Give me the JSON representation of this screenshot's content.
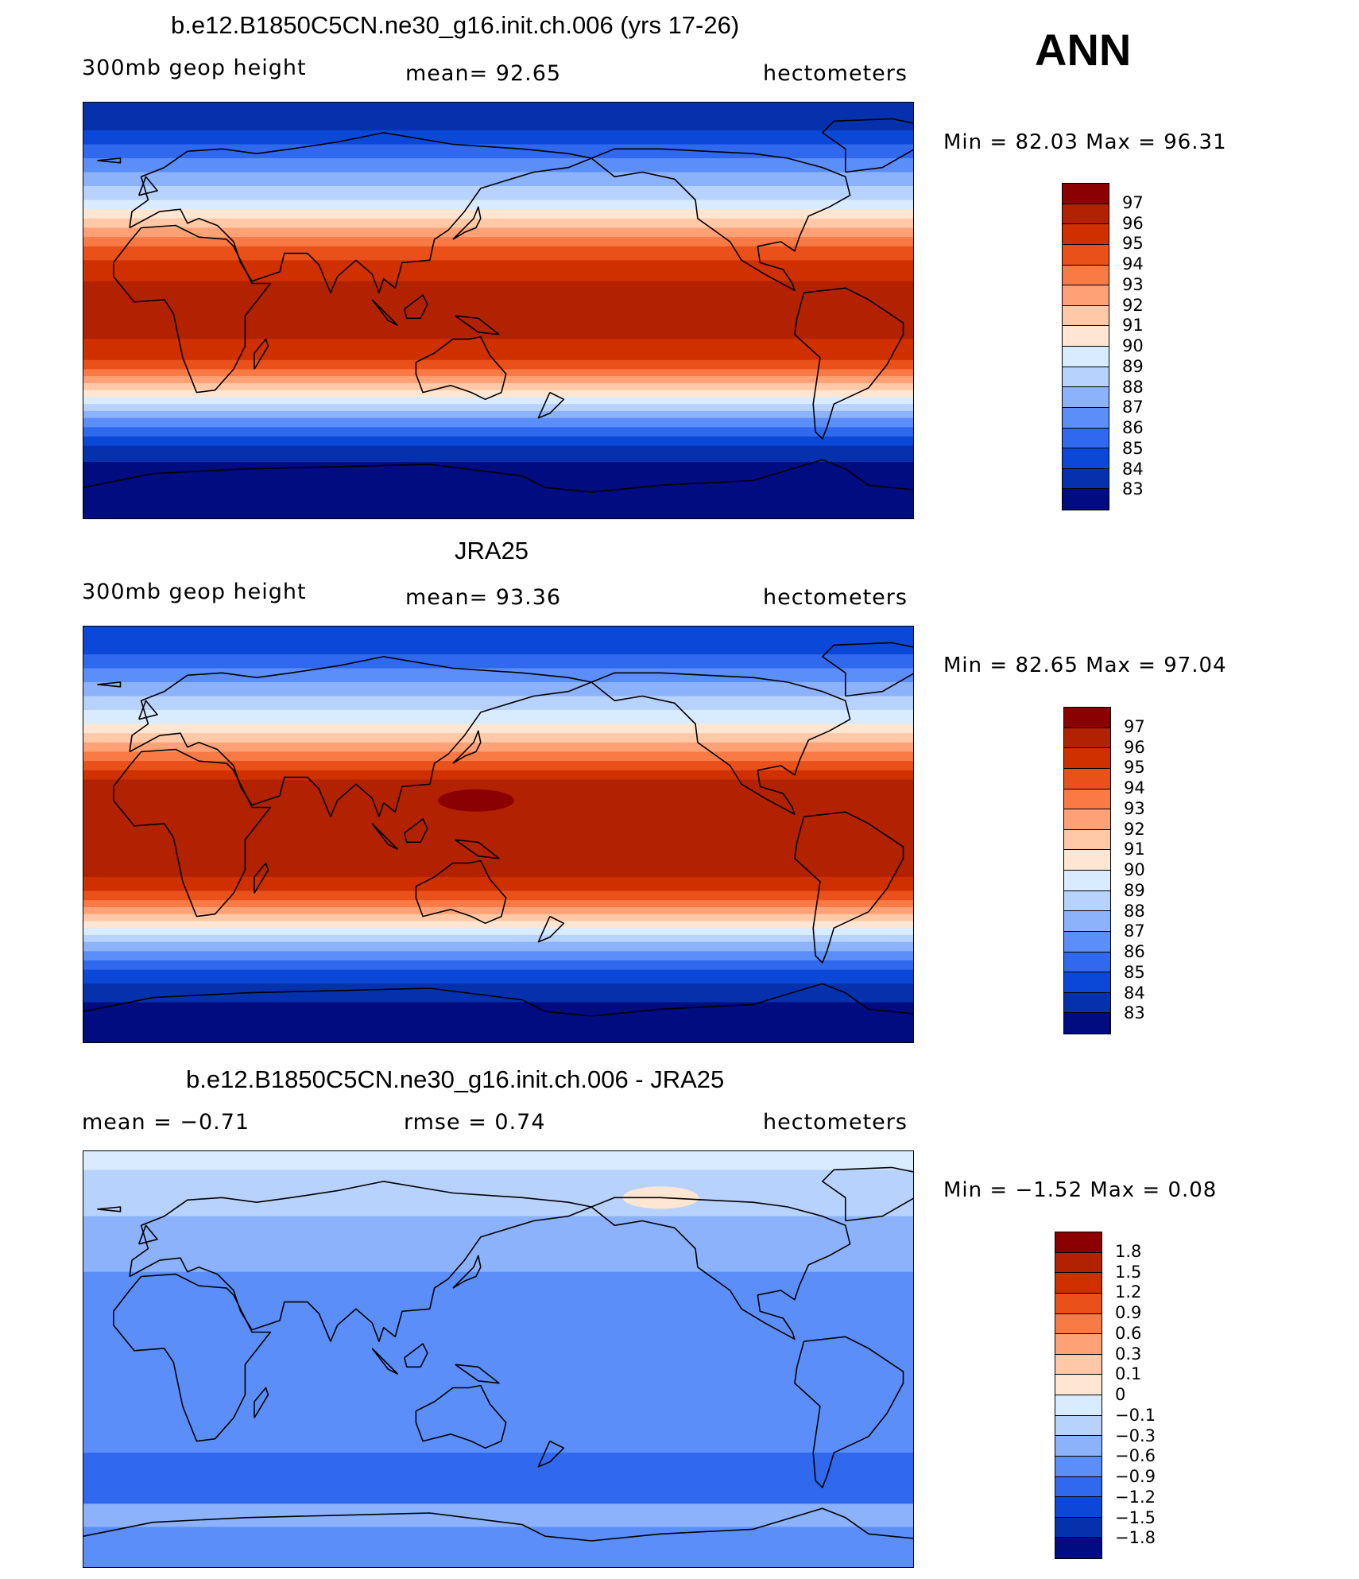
{
  "season": "ANN",
  "units": "hectometers",
  "palette_main": [
    "#8b0000",
    "#b22200",
    "#d03000",
    "#e9501a",
    "#f97a45",
    "#fea176",
    "#ffc8a6",
    "#ffe6d2",
    "#d9ecff",
    "#b7d2fd",
    "#8bb2fb",
    "#5b8ef8",
    "#3068ee",
    "#0c48d8",
    "#0532ac",
    "#000c80"
  ],
  "palette_diff": [
    "#8b0000",
    "#b22200",
    "#d03000",
    "#e9501a",
    "#f97a45",
    "#fea176",
    "#ffc8a6",
    "#ffe6d2",
    "#d9ecff",
    "#b7d2fd",
    "#8bb2fb",
    "#5b8ef8",
    "#3068ee",
    "#0c48d8",
    "#0532ac",
    "#000c80"
  ],
  "panels": [
    {
      "id": "model",
      "title": "b.e12.B1850C5CN.ne30_g16.init.ch.006 (yrs 17-26)",
      "left_label": "300mb geop height",
      "center_label": "mean=  92.65",
      "right_label": "hectometers",
      "minmax_label": "Min =   82.03 Max =   96.31",
      "levels": [
        "97",
        "96",
        "95",
        "94",
        "93",
        "92",
        "91",
        "90",
        "89",
        "88",
        "87",
        "86",
        "85",
        "84",
        "83"
      ],
      "bands": [
        {
          "lat": 90,
          "level": 14
        },
        {
          "lat": 78,
          "level": 13
        },
        {
          "lat": 72,
          "level": 12
        },
        {
          "lat": 66,
          "level": 11
        },
        {
          "lat": 60,
          "level": 10
        },
        {
          "lat": 54,
          "level": 9
        },
        {
          "lat": 48,
          "level": 8
        },
        {
          "lat": 44,
          "level": 7
        },
        {
          "lat": 40,
          "level": 6
        },
        {
          "lat": 36,
          "level": 5
        },
        {
          "lat": 32,
          "level": 4
        },
        {
          "lat": 28,
          "level": 3
        },
        {
          "lat": 22,
          "level": 2
        },
        {
          "lat": 13,
          "level": 1
        },
        {
          "lat": -12,
          "level": 2
        },
        {
          "lat": -21,
          "level": 3
        },
        {
          "lat": -25,
          "level": 4
        },
        {
          "lat": -28,
          "level": 5
        },
        {
          "lat": -31,
          "level": 6
        },
        {
          "lat": -34,
          "level": 7
        },
        {
          "lat": -37,
          "level": 8
        },
        {
          "lat": -40,
          "level": 9
        },
        {
          "lat": -43,
          "level": 10
        },
        {
          "lat": -46,
          "level": 11
        },
        {
          "lat": -50,
          "level": 12
        },
        {
          "lat": -54,
          "level": 13
        },
        {
          "lat": -58,
          "level": 14
        },
        {
          "lat": -65,
          "level": 15
        }
      ],
      "blob": null
    },
    {
      "id": "obs",
      "title": "JRA25",
      "left_label": "300mb geop height",
      "center_label": "mean=  93.36",
      "right_label": "hectometers",
      "minmax_label": "Min =   82.65 Max =   97.04",
      "levels": [
        "97",
        "96",
        "95",
        "94",
        "93",
        "92",
        "91",
        "90",
        "89",
        "88",
        "87",
        "86",
        "85",
        "84",
        "83"
      ],
      "bands": [
        {
          "lat": 90,
          "level": 13
        },
        {
          "lat": 78,
          "level": 12
        },
        {
          "lat": 72,
          "level": 11
        },
        {
          "lat": 66,
          "level": 10
        },
        {
          "lat": 60,
          "level": 9
        },
        {
          "lat": 54,
          "level": 8
        },
        {
          "lat": 48,
          "level": 7
        },
        {
          "lat": 44,
          "level": 6
        },
        {
          "lat": 40,
          "level": 5
        },
        {
          "lat": 36,
          "level": 4
        },
        {
          "lat": 32,
          "level": 3
        },
        {
          "lat": 28,
          "level": 2
        },
        {
          "lat": 24,
          "level": 1
        },
        {
          "lat": -18,
          "level": 2
        },
        {
          "lat": -24,
          "level": 3
        },
        {
          "lat": -28,
          "level": 4
        },
        {
          "lat": -31,
          "level": 5
        },
        {
          "lat": -34,
          "level": 6
        },
        {
          "lat": -37,
          "level": 7
        },
        {
          "lat": -40,
          "level": 8
        },
        {
          "lat": -43,
          "level": 9
        },
        {
          "lat": -46,
          "level": 10
        },
        {
          "lat": -50,
          "level": 11
        },
        {
          "lat": -54,
          "level": 12
        },
        {
          "lat": -58,
          "level": 13
        },
        {
          "lat": -64,
          "level": 14
        },
        {
          "lat": -72,
          "level": 15
        }
      ],
      "blob": {
        "lon": 140,
        "lat": 15,
        "level": 0
      }
    },
    {
      "id": "diff",
      "title": "b.e12.B1850C5CN.ne30_g16.init.ch.006 - JRA25",
      "left_label": "mean =   −0.71",
      "center_label": "rmse =    0.74",
      "right_label": "hectometers",
      "minmax_label": "Min =   −1.52 Max =    0.08",
      "levels": [
        "1.8",
        "1.5",
        "1.2",
        "0.9",
        "0.6",
        "0.3",
        "0.1",
        "0",
        "−0.1",
        "−0.3",
        "−0.6",
        "−0.9",
        "−1.2",
        "−1.5",
        "−1.8"
      ],
      "bands": [
        {
          "lat": 90,
          "level": 8
        },
        {
          "lat": 82,
          "level": 9
        },
        {
          "lat": 62,
          "level": 10
        },
        {
          "lat": 38,
          "level": 11
        },
        {
          "lat": -40,
          "level": 12
        },
        {
          "lat": -62,
          "level": 10
        },
        {
          "lat": -72,
          "level": 11
        }
      ],
      "blob": {
        "lon": -140,
        "lat": 70,
        "level": 7
      }
    }
  ]
}
